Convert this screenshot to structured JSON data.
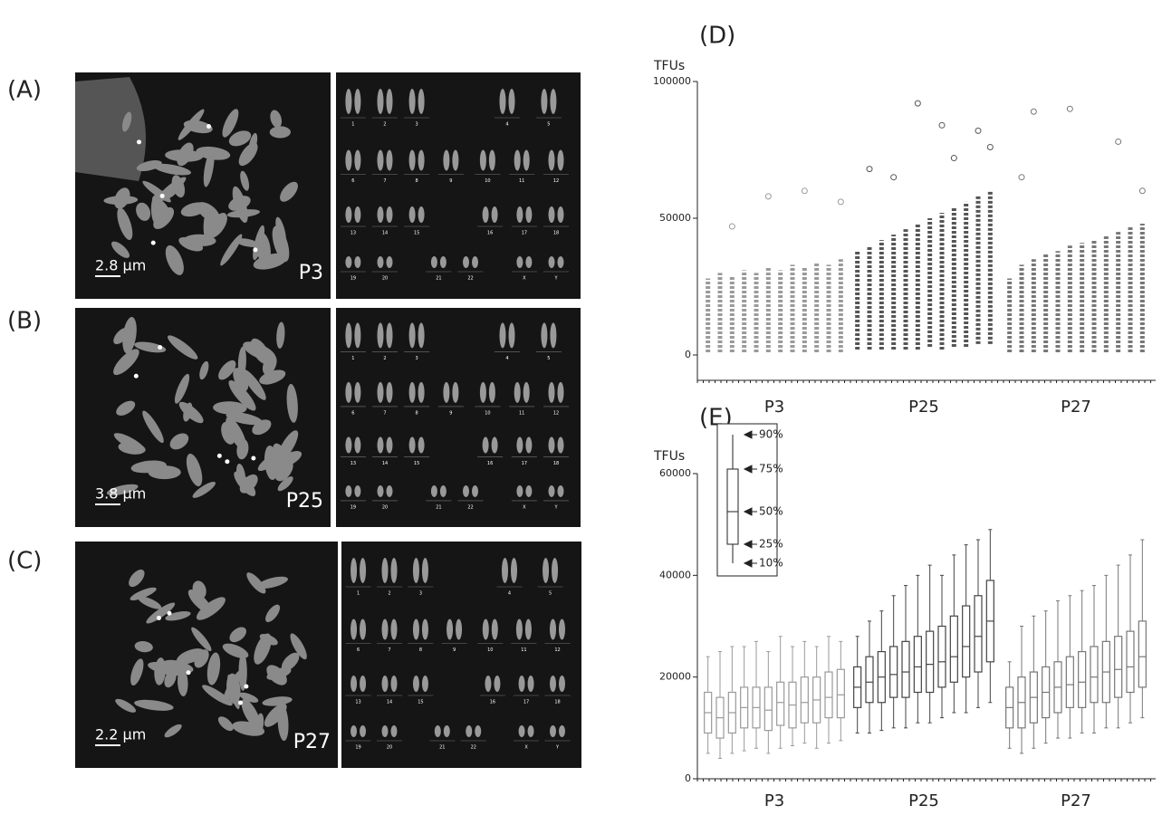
{
  "panels": [
    {
      "label": "(A)",
      "scale": "2.8 μm",
      "passage": "P3"
    },
    {
      "label": "(B)",
      "scale": "3.8 μm",
      "passage": "P25"
    },
    {
      "label": "(C)",
      "scale": "2.2 μm",
      "passage": "P27"
    }
  ],
  "karyotype_labels": [
    "1",
    "2",
    "3",
    "4",
    "5",
    "6",
    "7",
    "8",
    "9",
    "10",
    "11",
    "12",
    "13",
    "14",
    "15",
    "16",
    "17",
    "18",
    "19",
    "20",
    "21",
    "22",
    "X",
    "Y"
  ],
  "chart_data": [
    {
      "type": "strip",
      "title": "(D)",
      "ylabel": "TFUs",
      "groups": [
        "P3",
        "P25",
        "P27"
      ],
      "ylim": [
        0,
        100000
      ],
      "yticks": [
        0,
        50000,
        100000
      ],
      "colors": [
        "#9a9a9a",
        "#555555",
        "#777777"
      ],
      "columns": [
        [
          1000,
          28000
        ],
        [
          1000,
          30000
        ],
        [
          1000,
          29000
        ],
        [
          1000,
          31000
        ],
        [
          1000,
          30000
        ],
        [
          1000,
          32000
        ],
        [
          1000,
          31000
        ],
        [
          1000,
          33000
        ],
        [
          1000,
          32000
        ],
        [
          1000,
          34000
        ],
        [
          1000,
          33000
        ],
        [
          1000,
          35000
        ],
        [
          2000,
          38000
        ],
        [
          2000,
          40000
        ],
        [
          2000,
          42000
        ],
        [
          2000,
          44000
        ],
        [
          2000,
          46000
        ],
        [
          2000,
          48000
        ],
        [
          3000,
          50000
        ],
        [
          2000,
          52000
        ],
        [
          3000,
          54000
        ],
        [
          3000,
          56000
        ],
        [
          4000,
          58000
        ],
        [
          4000,
          60000
        ],
        [
          1000,
          28000
        ],
        [
          1000,
          33000
        ],
        [
          1000,
          35000
        ],
        [
          1000,
          37000
        ],
        [
          1000,
          38000
        ],
        [
          1000,
          40000
        ],
        [
          1000,
          41000
        ],
        [
          1000,
          42000
        ],
        [
          1000,
          44000
        ],
        [
          1000,
          45000
        ],
        [
          1000,
          47000
        ],
        [
          1000,
          48000
        ]
      ],
      "outlier_cols": [
        2,
        5,
        8,
        11,
        13,
        15,
        17,
        19,
        20,
        22,
        23,
        25,
        26,
        29,
        33,
        35
      ],
      "outlier_values": [
        47000,
        58000,
        60000,
        56000,
        68000,
        65000,
        92000,
        84000,
        72000,
        82000,
        76000,
        65000,
        89000,
        90000,
        78000,
        60000
      ]
    },
    {
      "type": "box",
      "title": "(E)",
      "ylabel": "TFUs",
      "groups": [
        "P3",
        "P25",
        "P27"
      ],
      "ylim": [
        0,
        60000
      ],
      "yticks": [
        0,
        20000,
        40000,
        60000
      ],
      "colors": [
        "#9a9a9a",
        "#444444",
        "#777777"
      ],
      "legend_labels": [
        "90%",
        "75%",
        "50%",
        "25%",
        "10%"
      ],
      "boxes": [
        [
          5000,
          9000,
          13000,
          17000,
          24000
        ],
        [
          4000,
          8000,
          12000,
          16000,
          25000
        ],
        [
          5000,
          9000,
          13000,
          17000,
          26000
        ],
        [
          5500,
          10000,
          14000,
          18000,
          26000
        ],
        [
          6000,
          10000,
          14000,
          18000,
          27000
        ],
        [
          5000,
          9500,
          13500,
          18000,
          25000
        ],
        [
          6000,
          10500,
          15000,
          19000,
          28000
        ],
        [
          6500,
          10000,
          14500,
          19000,
          26000
        ],
        [
          7000,
          11000,
          15000,
          20000,
          27000
        ],
        [
          6000,
          11000,
          15500,
          20000,
          26000
        ],
        [
          7000,
          12000,
          16000,
          21000,
          28000
        ],
        [
          7500,
          12000,
          16500,
          21500,
          27000
        ],
        [
          9000,
          14000,
          18000,
          22000,
          28000
        ],
        [
          9000,
          15000,
          19000,
          24000,
          31000
        ],
        [
          9500,
          15000,
          20000,
          25000,
          33000
        ],
        [
          10000,
          16000,
          20500,
          26000,
          36000
        ],
        [
          10000,
          16000,
          21000,
          27000,
          38000
        ],
        [
          11000,
          17000,
          22000,
          28000,
          40000
        ],
        [
          11000,
          17000,
          22500,
          29000,
          42000
        ],
        [
          12000,
          18000,
          23000,
          30000,
          40000
        ],
        [
          13000,
          19000,
          24000,
          32000,
          44000
        ],
        [
          13000,
          20000,
          26000,
          34000,
          46000
        ],
        [
          14000,
          21000,
          28000,
          36000,
          47000
        ],
        [
          15000,
          23000,
          31000,
          39000,
          49000
        ],
        [
          6000,
          10000,
          14000,
          18000,
          23000
        ],
        [
          5000,
          10000,
          15000,
          20000,
          30000
        ],
        [
          6000,
          11000,
          16000,
          21000,
          32000
        ],
        [
          7000,
          12000,
          17000,
          22000,
          33000
        ],
        [
          8000,
          13000,
          18000,
          23000,
          35000
        ],
        [
          8000,
          14000,
          18500,
          24000,
          36000
        ],
        [
          9000,
          14000,
          19000,
          25000,
          37000
        ],
        [
          9000,
          15000,
          20000,
          26000,
          38000
        ],
        [
          10000,
          15000,
          21000,
          27000,
          40000
        ],
        [
          10000,
          16000,
          21500,
          28000,
          42000
        ],
        [
          11000,
          17000,
          22000,
          29000,
          44000
        ],
        [
          12000,
          18000,
          24000,
          31000,
          47000
        ]
      ]
    }
  ]
}
